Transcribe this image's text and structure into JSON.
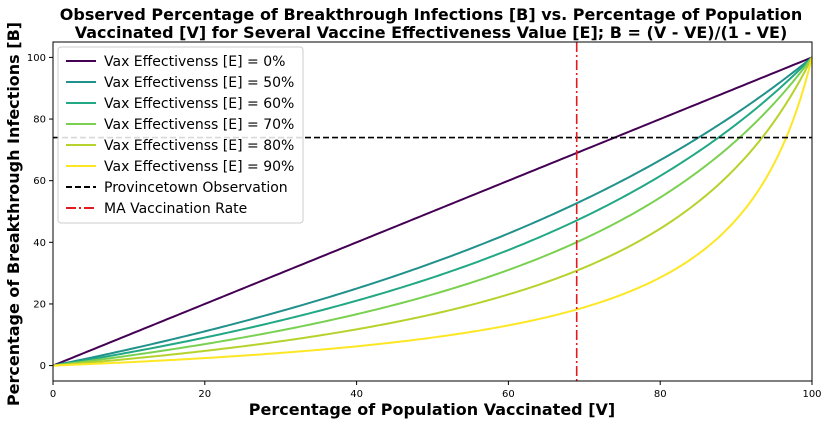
{
  "chart_data": {
    "type": "line",
    "title_lines": [
      "Observed Percentage of Breakthrough Infections [B] vs. Percentage of Population",
      "Vaccinated [V] for Several Vaccine Effectiveness Value [E]; B = (V - VE)/(1 - VE)"
    ],
    "xlabel": "Percentage of Population Vaccinated [V]",
    "ylabel": "Percentage of Breakthrough Infections [B]",
    "xlim": [
      0,
      100
    ],
    "ylim": [
      -5,
      105
    ],
    "xticks": [
      "0",
      "20",
      "40",
      "60",
      "80",
      "100"
    ],
    "yticks": [
      "0",
      "20",
      "40",
      "60",
      "80",
      "100"
    ],
    "grid": false,
    "legend_position": "upper-left",
    "series": [
      {
        "name": "Vax Effectivenss [E] = 0%",
        "effectiveness": 0,
        "color": "#440154",
        "x": [
          0,
          10,
          20,
          30,
          40,
          50,
          60,
          70,
          80,
          90,
          100
        ],
        "y": [
          0,
          10,
          20,
          30,
          40,
          50,
          60,
          70,
          80,
          90,
          100
        ]
      },
      {
        "name": "Vax Effectivenss [E] = 50%",
        "effectiveness": 0.5,
        "color": "#21918c",
        "x": [
          0,
          10,
          20,
          30,
          40,
          50,
          60,
          70,
          80,
          90,
          100
        ],
        "y": [
          0,
          5.3,
          11.1,
          17.6,
          25,
          33.3,
          42.9,
          53.8,
          66.7,
          81.8,
          100
        ]
      },
      {
        "name": "Vax Effectivenss [E] = 60%",
        "effectiveness": 0.6,
        "color": "#22a884",
        "x": [
          0,
          10,
          20,
          30,
          40,
          50,
          60,
          70,
          80,
          90,
          100
        ],
        "y": [
          0,
          4.3,
          9.1,
          14.6,
          21.1,
          28.6,
          37.5,
          48.3,
          61.5,
          78.3,
          100
        ]
      },
      {
        "name": "Vax Effectivenss [E] = 70%",
        "effectiveness": 0.7,
        "color": "#7ad151",
        "x": [
          0,
          10,
          20,
          30,
          40,
          50,
          60,
          70,
          80,
          90,
          100
        ],
        "y": [
          0,
          3.2,
          7,
          11.4,
          16.7,
          23.1,
          31,
          41.2,
          54.5,
          73,
          100
        ]
      },
      {
        "name": "Vax Effectivenss [E] = 80%",
        "effectiveness": 0.8,
        "color": "#b5d32c",
        "x": [
          0,
          10,
          20,
          30,
          40,
          50,
          60,
          70,
          80,
          90,
          100
        ],
        "y": [
          0,
          2.2,
          4.8,
          7.9,
          11.8,
          16.7,
          23.1,
          31.8,
          44.4,
          64.3,
          100
        ]
      },
      {
        "name": "Vax Effectivenss [E] = 90%",
        "effectiveness": 0.9,
        "color": "#fde725",
        "x": [
          0,
          10,
          20,
          30,
          40,
          50,
          60,
          70,
          80,
          90,
          100
        ],
        "y": [
          0,
          1.1,
          2.4,
          4.1,
          6.3,
          9.1,
          13,
          18.9,
          28.6,
          47.4,
          100
        ]
      }
    ],
    "reference_lines": [
      {
        "name": "Provincetown Observation",
        "orientation": "horizontal",
        "value": 74,
        "color": "#000000",
        "style": "dashed"
      },
      {
        "name": "MA Vaccination Rate",
        "orientation": "vertical",
        "value": 69,
        "color": "#e41a1c",
        "style": "dashdot"
      }
    ]
  }
}
